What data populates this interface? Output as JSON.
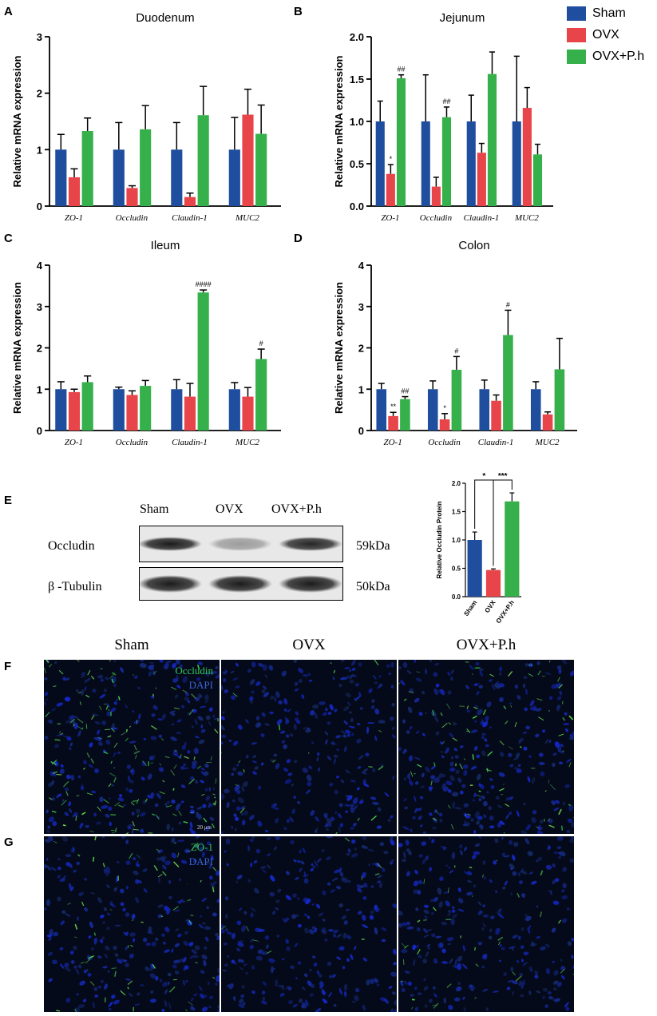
{
  "legend": [
    {
      "name": "Sham",
      "color": "#1f4e9e"
    },
    {
      "name": "OVX",
      "color": "#e8454a"
    },
    {
      "name": "OVX+P.h",
      "color": "#35b04a"
    }
  ],
  "panel_letters": {
    "A": "A",
    "B": "B",
    "C": "C",
    "D": "D",
    "E": "E",
    "F": "F",
    "G": "G"
  },
  "chart_data": [
    {
      "id": "A",
      "type": "bar",
      "title": "Duodenum",
      "ylabel": "Relative mRNA expression",
      "ylim": [
        0,
        3
      ],
      "yticks": [
        "0",
        "1",
        "2",
        "3"
      ],
      "ytick_values": [
        0,
        1,
        2,
        3
      ],
      "categories": [
        "ZO-1",
        "Occludin",
        "Claudin-1",
        "MUC2"
      ],
      "series": [
        {
          "name": "Sham",
          "values": [
            1.0,
            1.0,
            1.0,
            1.0
          ],
          "errors": [
            0.27,
            0.48,
            0.48,
            0.57
          ]
        },
        {
          "name": "OVX",
          "values": [
            0.51,
            0.32,
            0.16,
            1.62
          ],
          "errors": [
            0.15,
            0.04,
            0.07,
            0.45
          ]
        },
        {
          "name": "OVX+P.h",
          "values": [
            1.33,
            1.36,
            1.61,
            1.28
          ],
          "errors": [
            0.23,
            0.42,
            0.51,
            0.51
          ]
        }
      ],
      "annotations": []
    },
    {
      "id": "B",
      "type": "bar",
      "title": "Jejunum",
      "ylabel": "Relative mRNA expression",
      "ylim": [
        0,
        2.0
      ],
      "yticks": [
        "0.0",
        "0.5",
        "1.0",
        "1.5",
        "2.0"
      ],
      "ytick_values": [
        0,
        0.5,
        1.0,
        1.5,
        2.0
      ],
      "categories": [
        "ZO-1",
        "Occludin",
        "Claudin-1",
        "MUC2"
      ],
      "series": [
        {
          "name": "Sham",
          "values": [
            1.0,
            1.0,
            1.0,
            1.0
          ],
          "errors": [
            0.24,
            0.55,
            0.31,
            0.77
          ]
        },
        {
          "name": "OVX",
          "values": [
            0.38,
            0.23,
            0.63,
            1.16
          ],
          "errors": [
            0.11,
            0.11,
            0.11,
            0.24
          ]
        },
        {
          "name": "OVX+P.h",
          "values": [
            1.51,
            1.05,
            1.56,
            0.61
          ],
          "errors": [
            0.04,
            0.12,
            0.26,
            0.12
          ]
        }
      ],
      "annotations": [
        {
          "category": 0,
          "series": 1,
          "text": "*"
        },
        {
          "category": 0,
          "series": 2,
          "text": "##"
        },
        {
          "category": 1,
          "series": 2,
          "text": "##"
        }
      ]
    },
    {
      "id": "C",
      "type": "bar",
      "title": "Ileum",
      "ylabel": "Relative mRNA expression",
      "ylim": [
        0,
        4
      ],
      "yticks": [
        "0",
        "1",
        "2",
        "3",
        "4"
      ],
      "ytick_values": [
        0,
        1,
        2,
        3,
        4
      ],
      "categories": [
        "ZO-1",
        "Occludin",
        "Claudin-1",
        "MUC2"
      ],
      "series": [
        {
          "name": "Sham",
          "values": [
            1.0,
            1.0,
            1.0,
            1.0
          ],
          "errors": [
            0.18,
            0.05,
            0.23,
            0.16
          ]
        },
        {
          "name": "OVX",
          "values": [
            0.93,
            0.86,
            0.82,
            0.82
          ],
          "errors": [
            0.07,
            0.1,
            0.32,
            0.22
          ]
        },
        {
          "name": "OVX+P.h",
          "values": [
            1.17,
            1.08,
            3.34,
            1.73
          ],
          "errors": [
            0.15,
            0.13,
            0.06,
            0.24
          ]
        }
      ],
      "annotations": [
        {
          "category": 2,
          "series": 2,
          "text": "####"
        },
        {
          "category": 3,
          "series": 2,
          "text": "#"
        }
      ]
    },
    {
      "id": "D",
      "type": "bar",
      "title": "Colon",
      "ylabel": "Relative mRNA expression",
      "ylim": [
        0,
        4
      ],
      "yticks": [
        "0",
        "1",
        "2",
        "3",
        "4"
      ],
      "ytick_values": [
        0,
        1,
        2,
        3,
        4
      ],
      "categories": [
        "ZO-1",
        "Occludin",
        "Claudin-1",
        "MUC2"
      ],
      "series": [
        {
          "name": "Sham",
          "values": [
            1.0,
            1.0,
            1.0,
            1.0
          ],
          "errors": [
            0.14,
            0.2,
            0.22,
            0.18
          ]
        },
        {
          "name": "OVX",
          "values": [
            0.35,
            0.27,
            0.72,
            0.39
          ],
          "errors": [
            0.09,
            0.14,
            0.14,
            0.06
          ]
        },
        {
          "name": "OVX+P.h",
          "values": [
            0.76,
            1.47,
            2.31,
            1.48
          ],
          "errors": [
            0.06,
            0.32,
            0.6,
            0.75
          ]
        }
      ],
      "annotations": [
        {
          "category": 0,
          "series": 1,
          "text": "**"
        },
        {
          "category": 0,
          "series": 2,
          "text": "##"
        },
        {
          "category": 1,
          "series": 1,
          "text": "*"
        },
        {
          "category": 1,
          "series": 2,
          "text": "#"
        },
        {
          "category": 2,
          "series": 2,
          "text": "#"
        }
      ]
    },
    {
      "id": "E",
      "type": "bar",
      "title": "",
      "ylabel": "Relative Occludin Protein",
      "ylim": [
        0,
        2.0
      ],
      "yticks": [
        "0.0",
        "0.5",
        "1.0",
        "1.5",
        "2.0"
      ],
      "ytick_values": [
        0,
        0.5,
        1.0,
        1.5,
        2.0
      ],
      "categories": [
        "Sham",
        "OVX",
        "OVX+P.h"
      ],
      "series": [
        {
          "name": "Protein",
          "values": [
            1.0,
            0.47,
            1.68
          ],
          "errors": [
            0.14,
            0.02,
            0.15
          ],
          "colors": [
            "#1f4e9e",
            "#e8454a",
            "#35b04a"
          ]
        }
      ],
      "brackets": [
        {
          "from": 0,
          "to": 1,
          "text": "*"
        },
        {
          "from": 1,
          "to": 2,
          "text": "***"
        }
      ]
    }
  ],
  "western_blot": {
    "headers": [
      "Sham",
      "OVX",
      "OVX+P.h"
    ],
    "rows": [
      {
        "label": "Occludin",
        "size": "59kDa",
        "intensity": [
          0.95,
          0.35,
          0.9
        ]
      },
      {
        "label": "β -Tubulin",
        "size": "50kDa",
        "intensity": [
          0.95,
          0.95,
          0.95
        ]
      }
    ]
  },
  "micrographs": {
    "columns": [
      "Sham",
      "OVX",
      "OVX+P.h"
    ],
    "row_f": {
      "stain1": "Occludin",
      "stain2": "DAPI",
      "scale": "20 μm"
    },
    "row_g": {
      "stain1": "ZO-1",
      "stain2": "DAPI"
    }
  }
}
